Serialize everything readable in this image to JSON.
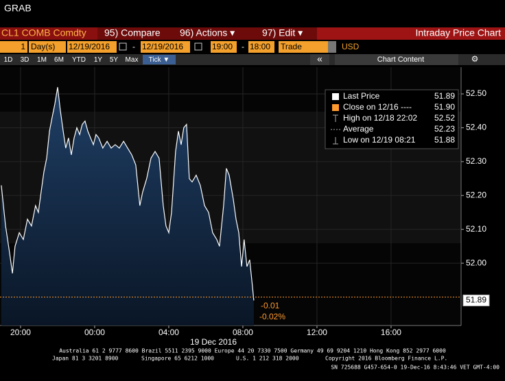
{
  "header": {
    "title": "GRAB"
  },
  "toolbar": {
    "ticker": "CL1 COMB Comdty",
    "menu": [
      "95) Compare",
      "96) Actions ▾",
      "97) Edit ▾"
    ],
    "screen_title": "Intraday Price Chart"
  },
  "params": {
    "period": "1",
    "unit": "Day(s)",
    "start_date": "12/19/2016",
    "end_date": "12/19/2016",
    "separator": "-",
    "start_time": "19:00",
    "end_time": "18:00",
    "field": "Trade",
    "currency": "USD"
  },
  "range_buttons": [
    "1D",
    "3D",
    "1M",
    "6M",
    "YTD",
    "1Y",
    "5Y",
    "Max",
    "Tick ▼"
  ],
  "nav": "«",
  "chart_content": "Chart Content",
  "settings": "⚙",
  "chart_data": {
    "type": "area",
    "x": [
      18.96,
      19.19,
      19.41,
      19.56,
      19.7,
      19.93,
      20.15,
      20.37,
      20.59,
      20.81,
      20.96,
      21.11,
      21.26,
      21.41,
      21.56,
      21.7,
      21.85,
      22.0,
      22.15,
      22.3,
      22.44,
      22.59,
      22.74,
      22.89,
      23.04,
      23.19,
      23.33,
      23.48,
      23.63,
      23.78,
      23.93,
      24.07,
      24.22,
      24.44,
      24.67,
      24.89,
      25.11,
      25.33,
      25.56,
      25.78,
      26.0,
      26.22,
      26.44,
      26.59,
      26.81,
      27.04,
      27.26,
      27.48,
      27.7,
      27.85,
      28.0,
      28.15,
      28.37,
      28.52,
      28.67,
      28.81,
      28.96,
      29.11,
      29.26,
      29.48,
      29.7,
      29.93,
      30.15,
      30.37,
      30.59,
      30.74,
      30.96,
      31.11,
      31.26,
      31.48,
      31.63,
      31.78,
      31.93,
      32.07,
      32.22,
      32.37,
      32.52,
      32.59
    ],
    "series": [
      {
        "name": "Last Price",
        "color": "#ffffff",
        "values": [
          52.23,
          52.11,
          52.03,
          51.97,
          52.05,
          52.09,
          52.07,
          52.13,
          52.11,
          52.17,
          52.15,
          52.21,
          52.27,
          52.31,
          52.39,
          52.43,
          52.47,
          52.52,
          52.45,
          52.39,
          52.34,
          52.37,
          52.32,
          52.37,
          52.4,
          52.38,
          52.41,
          52.42,
          52.39,
          52.37,
          52.35,
          52.38,
          52.37,
          52.34,
          52.36,
          52.34,
          52.35,
          52.34,
          52.36,
          52.34,
          52.32,
          52.29,
          52.17,
          52.21,
          52.25,
          52.31,
          52.33,
          52.31,
          52.17,
          52.11,
          52.09,
          52.15,
          52.33,
          52.39,
          52.35,
          52.4,
          52.41,
          52.25,
          52.24,
          52.26,
          52.23,
          52.17,
          52.15,
          52.09,
          52.07,
          52.05,
          52.17,
          52.28,
          52.26,
          52.19,
          52.13,
          52.09,
          51.99,
          52.07,
          51.99,
          52.01,
          51.93,
          51.89
        ]
      }
    ],
    "xlim": [
      18.89,
      43.78
    ],
    "xticks": [
      {
        "value": 20,
        "label": "20:00"
      },
      {
        "value": 24,
        "label": "00:00"
      },
      {
        "value": 28,
        "label": "04:00"
      },
      {
        "value": 32,
        "label": "08:00"
      },
      {
        "value": 36,
        "label": "12:00"
      },
      {
        "value": 40,
        "label": "16:00"
      }
    ],
    "x_label": "19 Dec 2016",
    "ylim": [
      51.816,
      52.579
    ],
    "yticks": [
      {
        "value": 52.0,
        "label": "52.00"
      },
      {
        "value": 52.1,
        "label": "52.10"
      },
      {
        "value": 52.2,
        "label": "52.20"
      },
      {
        "value": 52.3,
        "label": "52.30"
      },
      {
        "value": 52.4,
        "label": "52.40"
      },
      {
        "value": 52.5,
        "label": "52.50"
      }
    ],
    "grid": true,
    "last_price": 51.89,
    "close": {
      "label": "Close on 12/16 ----",
      "value": 51.9,
      "value_label": "51.90",
      "color": "#ff9a2e"
    },
    "stats": [
      {
        "label": "High on 12/18 22:02",
        "value": 52.52
      },
      {
        "label": "Average",
        "value": 52.23
      },
      {
        "label": "Low on 12/19 08:21",
        "value": 51.88
      }
    ],
    "change": -0.01,
    "change_pct": {
      "value": -0.02,
      "label": "-0.02%"
    }
  },
  "footer": {
    "line1": "Australia 61 2 9777 8600 Brazil 5511 2395 9000 Europe 44 20 7330 7500 Germany 49 69 9204 1210 Hong Kong 852 2977 6000",
    "line2": [
      "Japan 81 3 3201 8900",
      "Singapore 65 6212 1000",
      "U.S. 1 212 318 2000",
      "Copyright 2016 Bloomberg Finance L.P."
    ],
    "line3": "SN 725688 G457-654-0 19-Dec-16  8:43:46 VET  GMT-4:00"
  }
}
